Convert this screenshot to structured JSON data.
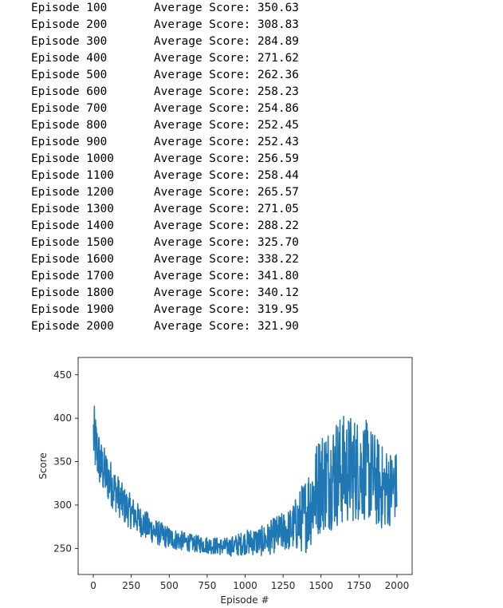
{
  "output_log": [
    {
      "episode_label": "Episode 100",
      "score_label": "Average Score: 350.63"
    },
    {
      "episode_label": "Episode 200",
      "score_label": "Average Score: 308.83"
    },
    {
      "episode_label": "Episode 300",
      "score_label": "Average Score: 284.89"
    },
    {
      "episode_label": "Episode 400",
      "score_label": "Average Score: 271.62"
    },
    {
      "episode_label": "Episode 500",
      "score_label": "Average Score: 262.36"
    },
    {
      "episode_label": "Episode 600",
      "score_label": "Average Score: 258.23"
    },
    {
      "episode_label": "Episode 700",
      "score_label": "Average Score: 254.86"
    },
    {
      "episode_label": "Episode 800",
      "score_label": "Average Score: 252.45"
    },
    {
      "episode_label": "Episode 900",
      "score_label": "Average Score: 252.43"
    },
    {
      "episode_label": "Episode 1000",
      "score_label": "Average Score: 256.59"
    },
    {
      "episode_label": "Episode 1100",
      "score_label": "Average Score: 258.44"
    },
    {
      "episode_label": "Episode 1200",
      "score_label": "Average Score: 265.57"
    },
    {
      "episode_label": "Episode 1300",
      "score_label": "Average Score: 271.05"
    },
    {
      "episode_label": "Episode 1400",
      "score_label": "Average Score: 288.22"
    },
    {
      "episode_label": "Episode 1500",
      "score_label": "Average Score: 325.70"
    },
    {
      "episode_label": "Episode 1600",
      "score_label": "Average Score: 338.22"
    },
    {
      "episode_label": "Episode 1700",
      "score_label": "Average Score: 341.80"
    },
    {
      "episode_label": "Episode 1800",
      "score_label": "Average Score: 340.12"
    },
    {
      "episode_label": "Episode 1900",
      "score_label": "Average Score: 319.95"
    },
    {
      "episode_label": "Episode 2000",
      "score_label": "Average Score: 321.90"
    }
  ],
  "chart_data": {
    "type": "line",
    "title": "",
    "xlabel": "Episode #",
    "ylabel": "Score",
    "xlim": [
      -100,
      2100
    ],
    "ylim": [
      220,
      470
    ],
    "xticks": [
      0,
      250,
      500,
      750,
      1000,
      1250,
      1500,
      1750,
      2000
    ],
    "yticks": [
      250,
      300,
      350,
      400,
      450
    ],
    "grid": false,
    "line_color": "#1f77b4",
    "series": [
      {
        "x": [
          1,
          25,
          50,
          100,
          150,
          200,
          250,
          300,
          350,
          400,
          450,
          500,
          550,
          600,
          650,
          700,
          750,
          800,
          850,
          900,
          950,
          1000,
          1050,
          1100,
          1150,
          1200,
          1250,
          1300,
          1350,
          1400,
          1450,
          1500,
          1550,
          1600,
          1650,
          1700,
          1750,
          1800,
          1850,
          1900,
          1950,
          2000
        ],
        "values": [
          380,
          362,
          345,
          330,
          315,
          300,
          292,
          283,
          276,
          270,
          266,
          262,
          260,
          258,
          256,
          255,
          254,
          253,
          252,
          252,
          254,
          257,
          258,
          258,
          261,
          266,
          269,
          272,
          280,
          290,
          310,
          328,
          332,
          338,
          340,
          342,
          341,
          340,
          330,
          320,
          320,
          322
        ],
        "noise": [
          40,
          35,
          30,
          28,
          24,
          22,
          20,
          18,
          17,
          15,
          14,
          13,
          12,
          11,
          10,
          10,
          10,
          10,
          10,
          11,
          13,
          14,
          16,
          17,
          19,
          21,
          23,
          25,
          35,
          45,
          55,
          60,
          62,
          65,
          65,
          63,
          60,
          58,
          55,
          50,
          45,
          40
        ]
      }
    ]
  }
}
